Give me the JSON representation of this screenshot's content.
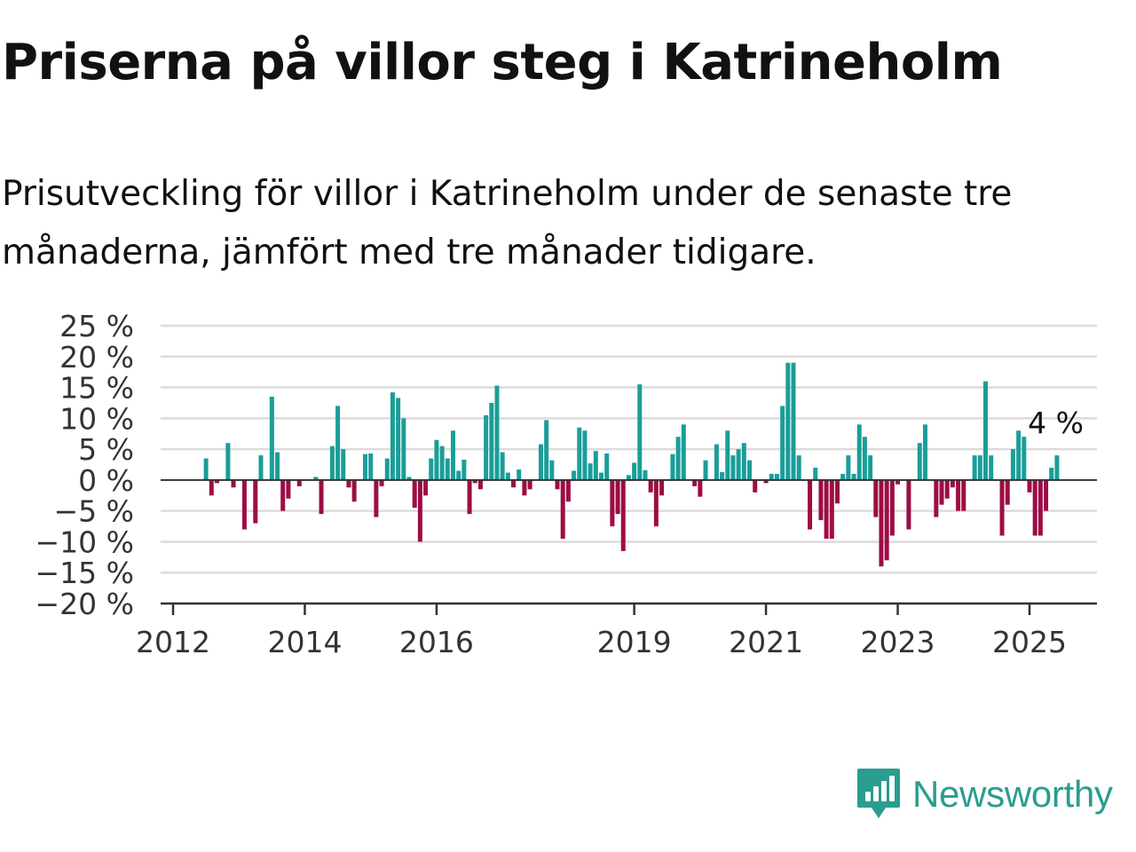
{
  "header": {
    "title": "Priserna på villor steg i Katrineholm",
    "subtitle": "Prisutveckling för villor i Katrineholm under de senaste tre månaderna, jämfört med tre månader tidigare."
  },
  "brand": {
    "name": "Newsworthy",
    "color": "#2a9d8f"
  },
  "chart_data": {
    "type": "bar",
    "x_unit": "month",
    "x_start": "2012-07",
    "x_end": "2025-05",
    "values": [
      3.5,
      -2.5,
      -0.5,
      null,
      6,
      -1.2,
      null,
      -8,
      null,
      -7,
      4,
      null,
      13.5,
      4.5,
      -5,
      -3,
      null,
      -1,
      null,
      null,
      0.5,
      -5.5,
      null,
      5.5,
      12,
      5,
      -1.2,
      -3.5,
      null,
      4.2,
      4.3,
      -6,
      -1,
      3.5,
      14.2,
      13.3,
      10,
      0.5,
      -4.5,
      -10,
      -2.5,
      3.5,
      6.5,
      5.5,
      3.5,
      8,
      1.5,
      3.3,
      -5.5,
      -0.5,
      -1.5,
      10.5,
      12.5,
      15.3,
      4.5,
      1.2,
      -1.2,
      1.7,
      -2.5,
      -1.5,
      null,
      5.8,
      9.7,
      3.2,
      -1.5,
      -9.5,
      -3.5,
      1.5,
      8.5,
      8,
      2.7,
      4.7,
      1.2,
      4.3,
      -7.5,
      -5.5,
      -11.5,
      0.8,
      2.8,
      15.5,
      1.6,
      -2,
      -7.5,
      -2.5,
      null,
      4.2,
      7,
      9,
      null,
      -1,
      -2.7,
      3.2,
      null,
      5.8,
      1.3,
      8,
      4,
      5,
      6,
      3.2,
      -2,
      null,
      -0.5,
      1,
      1,
      12,
      19,
      19,
      4,
      null,
      -8,
      2,
      -6.5,
      -9.5,
      -9.5,
      -3.8,
      1,
      4,
      1,
      9,
      7,
      4,
      -6,
      -14,
      -13,
      -9,
      -0.7,
      null,
      -8,
      null,
      6,
      9,
      null,
      -6,
      -4,
      -3,
      -1.2,
      -5,
      -5,
      null,
      4,
      4,
      16,
      4,
      null,
      -9,
      -4,
      5,
      8,
      7,
      -2,
      -9,
      -9,
      -5,
      2,
      4
    ],
    "last_value_label": "4 %",
    "x_tick_labels": [
      "2012",
      "2014",
      "2016",
      "2019",
      "2021",
      "2023",
      "2025"
    ],
    "y_tick_labels": [
      "25 %",
      "20 %",
      "15 %",
      "10 %",
      "5 %",
      "0 %",
      "−5 %",
      "−10 %",
      "−15 %",
      "−20 %"
    ],
    "ylim": [
      -20,
      25
    ],
    "grid": true,
    "colors": {
      "positive": "#1a9e99",
      "negative": "#9e0c45",
      "grid": "#dcdcdc",
      "axis": "#333333",
      "text": "#333333"
    }
  }
}
